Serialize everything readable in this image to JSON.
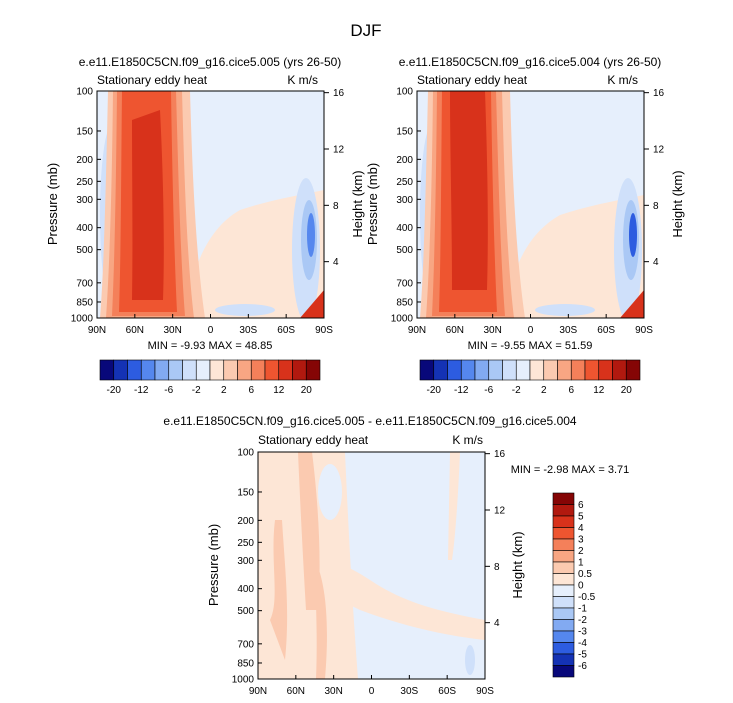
{
  "figure_title": "DJF",
  "chart_data": [
    {
      "type": "heatmap",
      "title": "e.e11.E1850C5CN.f09_g16.cice5.005 (yrs 26-50)",
      "left_label": "Stationary eddy heat",
      "right_label": "K m/s",
      "xlabel": "",
      "ylabel": "Pressure (mb)",
      "ylabel_right": "Height (km)",
      "x_ticks": [
        "90N",
        "60N",
        "30N",
        "0",
        "30S",
        "60S",
        "90S"
      ],
      "x_tick_values": [
        90,
        60,
        30,
        0,
        -30,
        -60,
        -90
      ],
      "xlim": [
        90,
        -90
      ],
      "y_ticks": [
        "100",
        "150",
        "200",
        "250",
        "300",
        "400",
        "500",
        "700",
        "850",
        "1000"
      ],
      "y_tick_values": [
        100,
        150,
        200,
        250,
        300,
        400,
        500,
        700,
        850,
        1000
      ],
      "ylim": [
        1000,
        100
      ],
      "y_right_ticks": [
        "4",
        "8",
        "12",
        "16"
      ],
      "y_right_tick_values": [
        4,
        8,
        12,
        16
      ],
      "min_label": "MIN =  -9.93  MAX =  48.85",
      "min": -9.93,
      "max": 48.85
    },
    {
      "type": "heatmap",
      "title": "e.e11.E1850C5CN.f09_g16.cice5.004 (yrs 26-50)",
      "left_label": "Stationary eddy heat",
      "right_label": "K m/s",
      "xlabel": "",
      "ylabel": "Pressure (mb)",
      "ylabel_right": "Height (km)",
      "x_ticks": [
        "90N",
        "60N",
        "30N",
        "0",
        "30S",
        "60S",
        "90S"
      ],
      "x_tick_values": [
        90,
        60,
        30,
        0,
        -30,
        -60,
        -90
      ],
      "xlim": [
        90,
        -90
      ],
      "y_ticks": [
        "100",
        "150",
        "200",
        "250",
        "300",
        "400",
        "500",
        "700",
        "850",
        "1000"
      ],
      "y_tick_values": [
        100,
        150,
        200,
        250,
        300,
        400,
        500,
        700,
        850,
        1000
      ],
      "ylim": [
        1000,
        100
      ],
      "y_right_ticks": [
        "4",
        "8",
        "12",
        "16"
      ],
      "y_right_tick_values": [
        4,
        8,
        12,
        16
      ],
      "min_label": "MIN =  -9.55  MAX =  51.59",
      "min": -9.55,
      "max": 51.59
    },
    {
      "type": "heatmap",
      "title": "e.e11.E1850C5CN.f09_g16.cice5.005 - e.e11.E1850C5CN.f09_g16.cice5.004",
      "left_label": "Stationary eddy heat",
      "right_label": "K m/s",
      "xlabel": "",
      "ylabel": "Pressure (mb)",
      "ylabel_right": "Height (km)",
      "x_ticks": [
        "90N",
        "60N",
        "30N",
        "0",
        "30S",
        "60S",
        "90S"
      ],
      "x_tick_values": [
        90,
        60,
        30,
        0,
        -30,
        -60,
        -90
      ],
      "xlim": [
        90,
        -90
      ],
      "y_ticks": [
        "100",
        "150",
        "200",
        "250",
        "300",
        "400",
        "500",
        "700",
        "850",
        "1000"
      ],
      "y_tick_values": [
        100,
        150,
        200,
        250,
        300,
        400,
        500,
        700,
        850,
        1000
      ],
      "ylim": [
        1000,
        100
      ],
      "y_right_ticks": [
        "4",
        "8",
        "12",
        "16"
      ],
      "y_right_tick_values": [
        4,
        8,
        12,
        16
      ],
      "min_label": "MIN =  -2.98  MAX =   3.71",
      "min": -2.98,
      "max": 3.71
    }
  ],
  "colorbar_top": {
    "labels": [
      "-20",
      "-12",
      "-6",
      "-2",
      "2",
      "6",
      "12",
      "20"
    ],
    "colors": [
      "#08087a",
      "#1432b4",
      "#2d5ce0",
      "#5587ee",
      "#82aaf2",
      "#aac8f5",
      "#cfe0fa",
      "#e6effc",
      "#fde6d6",
      "#fbcab0",
      "#f8a683",
      "#f4805a",
      "#ee5530",
      "#d8321b",
      "#b1190f",
      "#850505"
    ]
  },
  "colorbar_diff": {
    "labels": [
      "6",
      "5",
      "4",
      "3",
      "2",
      "1",
      "0.5",
      "0",
      "-0.5",
      "-1",
      "-2",
      "-3",
      "-4",
      "-5",
      "-6"
    ],
    "colors": [
      "#850505",
      "#b1190f",
      "#d8321b",
      "#ee5530",
      "#f4805a",
      "#f8a683",
      "#fbcab0",
      "#fde6d6",
      "#e6effc",
      "#cfe0fa",
      "#aac8f5",
      "#82aaf2",
      "#5587ee",
      "#2d5ce0",
      "#1432b4",
      "#08087a"
    ]
  }
}
